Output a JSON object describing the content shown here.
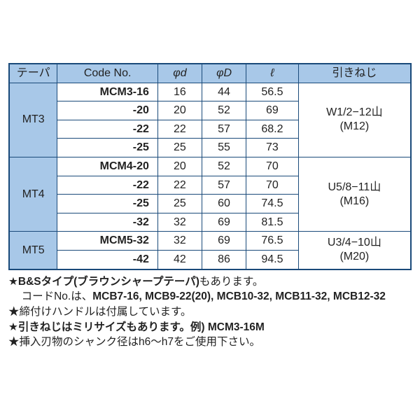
{
  "columns": {
    "taper": "テーパ",
    "code": "Code No.",
    "d": "φd",
    "D": "φD",
    "l": "ℓ",
    "pull": "引きねじ"
  },
  "groups": [
    {
      "taper": "MT3",
      "pull_line1": "W1/2−12山",
      "pull_line2": "(M12)",
      "rows": [
        {
          "code": "MCM3-16",
          "d": "16",
          "D": "44",
          "l": "56.5"
        },
        {
          "code": "-20",
          "d": "20",
          "D": "52",
          "l": "69"
        },
        {
          "code": "-22",
          "d": "22",
          "D": "57",
          "l": "68.2"
        },
        {
          "code": "-25",
          "d": "25",
          "D": "55",
          "l": "73"
        }
      ]
    },
    {
      "taper": "MT4",
      "pull_line1": "U5/8−11山",
      "pull_line2": "(M16)",
      "rows": [
        {
          "code": "MCM4-20",
          "d": "20",
          "D": "52",
          "l": "70"
        },
        {
          "code": "-22",
          "d": "22",
          "D": "57",
          "l": "70"
        },
        {
          "code": "-25",
          "d": "25",
          "D": "60",
          "l": "74.5"
        },
        {
          "code": "-32",
          "d": "32",
          "D": "69",
          "l": "81.5"
        }
      ]
    },
    {
      "taper": "MT5",
      "pull_line1": "U3/4−10山",
      "pull_line2": "(M20)",
      "rows": [
        {
          "code": "MCM5-32",
          "d": "32",
          "D": "69",
          "l": "76.5"
        },
        {
          "code": "-42",
          "d": "42",
          "D": "86",
          "l": "94.5"
        }
      ]
    }
  ],
  "notes": {
    "n1a": "★",
    "n1b": "B&Sタイプ(ブラウンシャープテーパ)",
    "n1c": "もあります。",
    "n2a": "コードNo.は、",
    "n2b": "MCB7-16, MCB9-22(20), MCB10-32, MCB11-32, MCB12-32",
    "n3": "★締付けハンドルは付属しています。",
    "n4a": "★",
    "n4b": "引きねじはミリサイズもあります。例)",
    "n4c": " MCM3-16M",
    "n5": "★挿入刃物のシャンク径はh6〜h7をご使用下さい。"
  },
  "style": {
    "border_color": "#1a4a7a",
    "header_bg": "#a8c8e8",
    "font_size_table": 16,
    "font_size_notes": 15.5
  }
}
